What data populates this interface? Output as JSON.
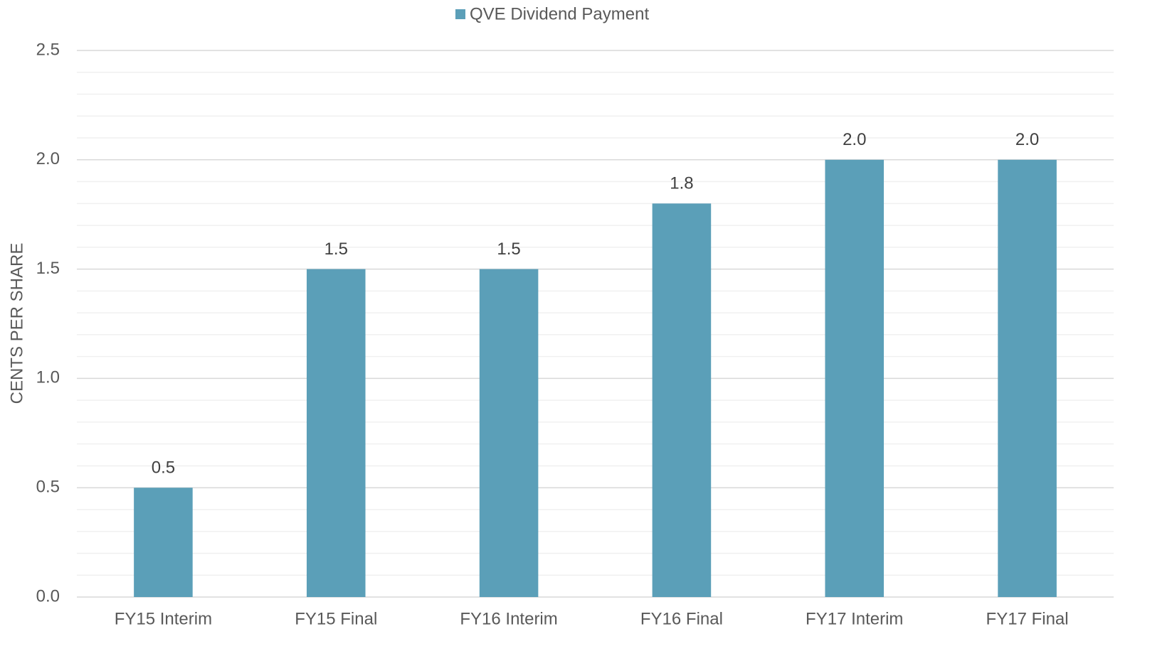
{
  "chart_data": {
    "type": "bar",
    "legend": "QVE Dividend Payment",
    "y_label": "CENTS PER SHARE",
    "categories": [
      "FY15 Interim",
      "FY15 Final",
      "FY16 Interim",
      "FY16 Final",
      "FY17 Interim",
      "FY17 Final"
    ],
    "series": [
      {
        "name": "QVE Dividend Payment",
        "color": "#5b9fb8",
        "values": [
          0.5,
          1.5,
          1.5,
          1.8,
          2,
          2
        ],
        "value_labels": [
          "0.5",
          "1.5",
          "1.5",
          "1.8",
          "2.0",
          "2.0"
        ]
      }
    ],
    "ylim": [
      0,
      2.5
    ],
    "yticks": [
      {
        "value": 0,
        "label": "0.0"
      },
      0.5,
      {
        "value": 1,
        "label": "1.0"
      },
      1.5,
      {
        "value": 2,
        "label": "2.0"
      },
      2.5
    ],
    "minor_yticks": [
      0.1,
      0.2,
      0.3,
      0.4,
      0.6,
      0.7,
      0.8,
      0.9,
      1.1,
      1.2,
      1.3,
      1.4,
      1.6,
      1.7,
      1.8,
      1.9,
      2.1,
      2.2,
      2.3,
      2.4
    ],
    "grid": true,
    "legend_position": "top"
  }
}
